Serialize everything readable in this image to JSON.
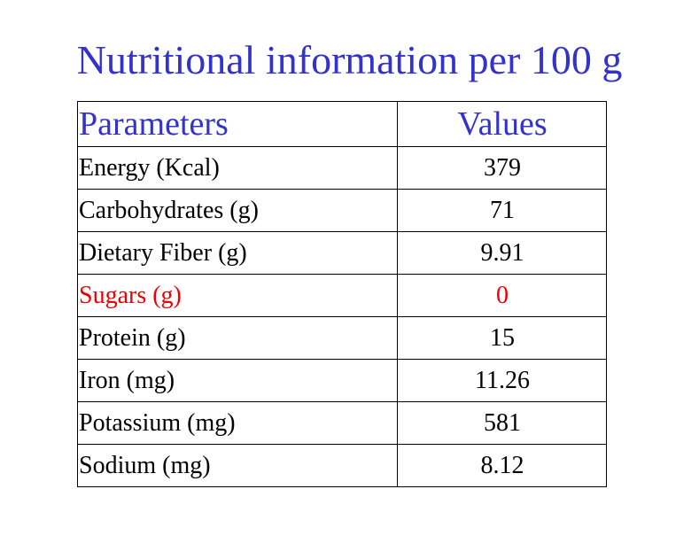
{
  "title": "Nutritional information per 100 g",
  "table": {
    "headers": [
      "Parameters",
      "Values"
    ],
    "rows": [
      {
        "parameter": "Energy (Kcal)",
        "value": "379"
      },
      {
        "parameter": "Carbohydrates (g)",
        "value": "71"
      },
      {
        "parameter": "Dietary Fiber (g)",
        "value": "9.91"
      },
      {
        "parameter": "Sugars (g)",
        "value": "0"
      },
      {
        "parameter": "Protein (g)",
        "value": "15"
      },
      {
        "parameter": "Iron (mg)",
        "value": "11.26"
      },
      {
        "parameter": "Potassium (mg)",
        "value": "581"
      },
      {
        "parameter": "Sodium (mg)",
        "value": "8.12"
      }
    ]
  },
  "colors": {
    "title": "#3333cc",
    "header": "#3333cc",
    "highlight_row": "#ee0000",
    "text": "#000000"
  }
}
